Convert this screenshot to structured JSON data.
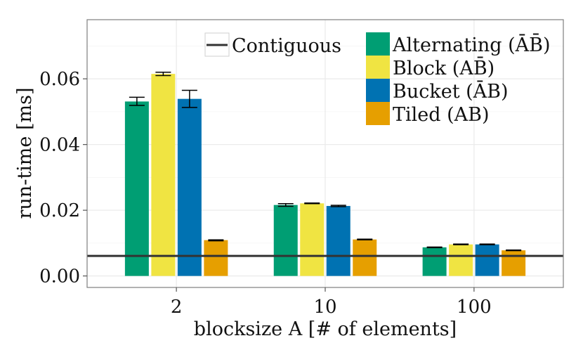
{
  "chart_data": {
    "type": "bar",
    "xlabel": "blocksize A [# of elements]",
    "ylabel": "run-time [ms]",
    "categories": [
      "2",
      "10",
      "100"
    ],
    "ylim": [
      -0.0035,
      0.078
    ],
    "yticks": [
      0.0,
      0.02,
      0.04,
      0.06
    ],
    "ytick_labels": [
      "0.00",
      "0.02",
      "0.04",
      "0.06"
    ],
    "grid": true,
    "legend_position": "top-right",
    "series": [
      {
        "name": "Alternating (ĀB̄)",
        "color": "#009E73",
        "values": [
          0.0531,
          0.0216,
          0.0087
        ],
        "err_low": [
          0.0519,
          0.0212,
          0.0086
        ],
        "err_high": [
          0.0544,
          0.022,
          0.0088
        ]
      },
      {
        "name": "Block (AB̄)",
        "color": "#F0E442",
        "values": [
          0.0615,
          0.0221,
          0.0096
        ],
        "err_low": [
          0.061,
          0.022,
          0.0095
        ],
        "err_high": [
          0.062,
          0.0222,
          0.0097
        ]
      },
      {
        "name": "Bucket (ĀB)",
        "color": "#0072B2",
        "values": [
          0.0539,
          0.0213,
          0.0096
        ],
        "err_low": [
          0.0513,
          0.0211,
          0.0095
        ],
        "err_high": [
          0.0565,
          0.0215,
          0.0097
        ]
      },
      {
        "name": "Tiled (AB)",
        "color": "#E69F00",
        "values": [
          0.0109,
          0.0111,
          0.0078
        ],
        "err_low": [
          0.0107,
          0.011,
          0.0077
        ],
        "err_high": [
          0.011,
          0.0112,
          0.0079
        ]
      }
    ],
    "reference_line": {
      "name": "Contiguous",
      "value": 0.0061,
      "color": "#333333"
    }
  }
}
